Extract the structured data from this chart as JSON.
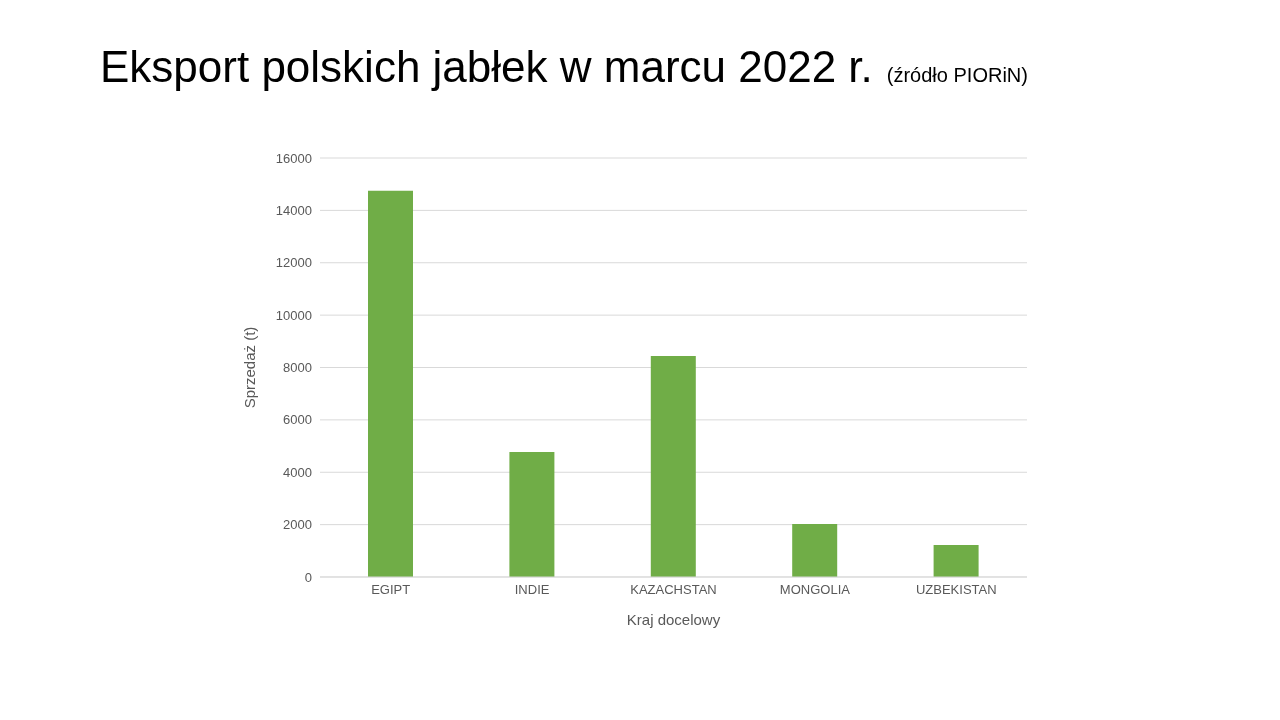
{
  "chart_data": {
    "type": "bar",
    "title": "Eksport polskich jabłek w marcu 2022 r.",
    "subtitle": "(źródło PIORiN)",
    "xlabel": "Kraj docelowy",
    "ylabel": "Sprzedaż (t)",
    "categories": [
      "EGIPT",
      "INDIE",
      "KAZACHSTAN",
      "MONGOLIA",
      "UZBEKISTAN"
    ],
    "values": [
      14750,
      4770,
      8440,
      2020,
      1220
    ],
    "color": "#70ad47",
    "ylim": [
      0,
      16000
    ],
    "yticks": [
      0,
      2000,
      4000,
      6000,
      8000,
      10000,
      12000,
      14000,
      16000
    ],
    "grid": "y"
  }
}
